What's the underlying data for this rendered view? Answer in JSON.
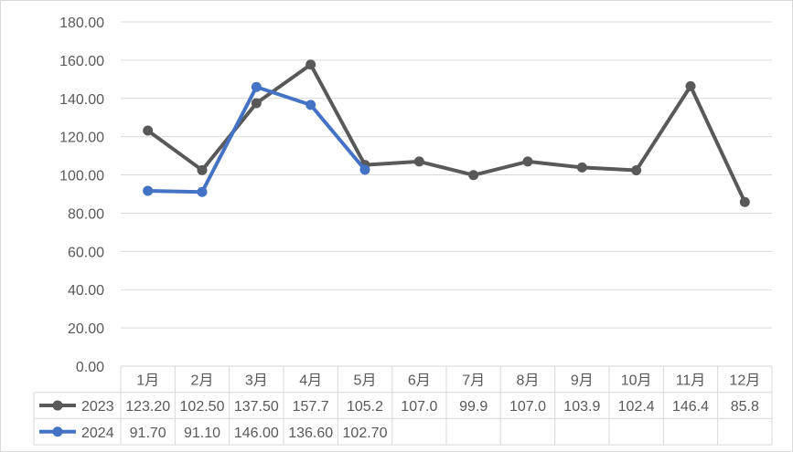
{
  "chart_data": {
    "type": "line",
    "title": "",
    "xlabel": "",
    "ylabel": "",
    "categories": [
      "1月",
      "2月",
      "3月",
      "4月",
      "5月",
      "6月",
      "7月",
      "8月",
      "9月",
      "10月",
      "11月",
      "12月"
    ],
    "ylim": [
      0,
      180
    ],
    "yticks": [
      "0.00",
      "20.00",
      "40.00",
      "60.00",
      "80.00",
      "100.00",
      "120.00",
      "140.00",
      "160.00",
      "180.00"
    ],
    "grid": true,
    "legend": "in data table, left",
    "data_table": true,
    "series": [
      {
        "name": "2023",
        "color": "#595959",
        "values": [
          123.2,
          102.5,
          137.5,
          157.7,
          105.2,
          107.0,
          99.9,
          107.0,
          103.9,
          102.4,
          146.4,
          85.8
        ],
        "labels": [
          "123.20",
          "102.50",
          "137.50",
          "157.7",
          "105.2",
          "107.0",
          "99.9",
          "107.0",
          "103.9",
          "102.4",
          "146.4",
          "85.8"
        ]
      },
      {
        "name": "2024",
        "color": "#4472c4",
        "values": [
          91.7,
          91.1,
          146.0,
          136.6,
          102.7,
          null,
          null,
          null,
          null,
          null,
          null,
          null
        ],
        "labels": [
          "91.70",
          "91.10",
          "146.00",
          "136.60",
          "102.70",
          "",
          "",
          "",
          "",
          "",
          "",
          ""
        ]
      }
    ]
  }
}
